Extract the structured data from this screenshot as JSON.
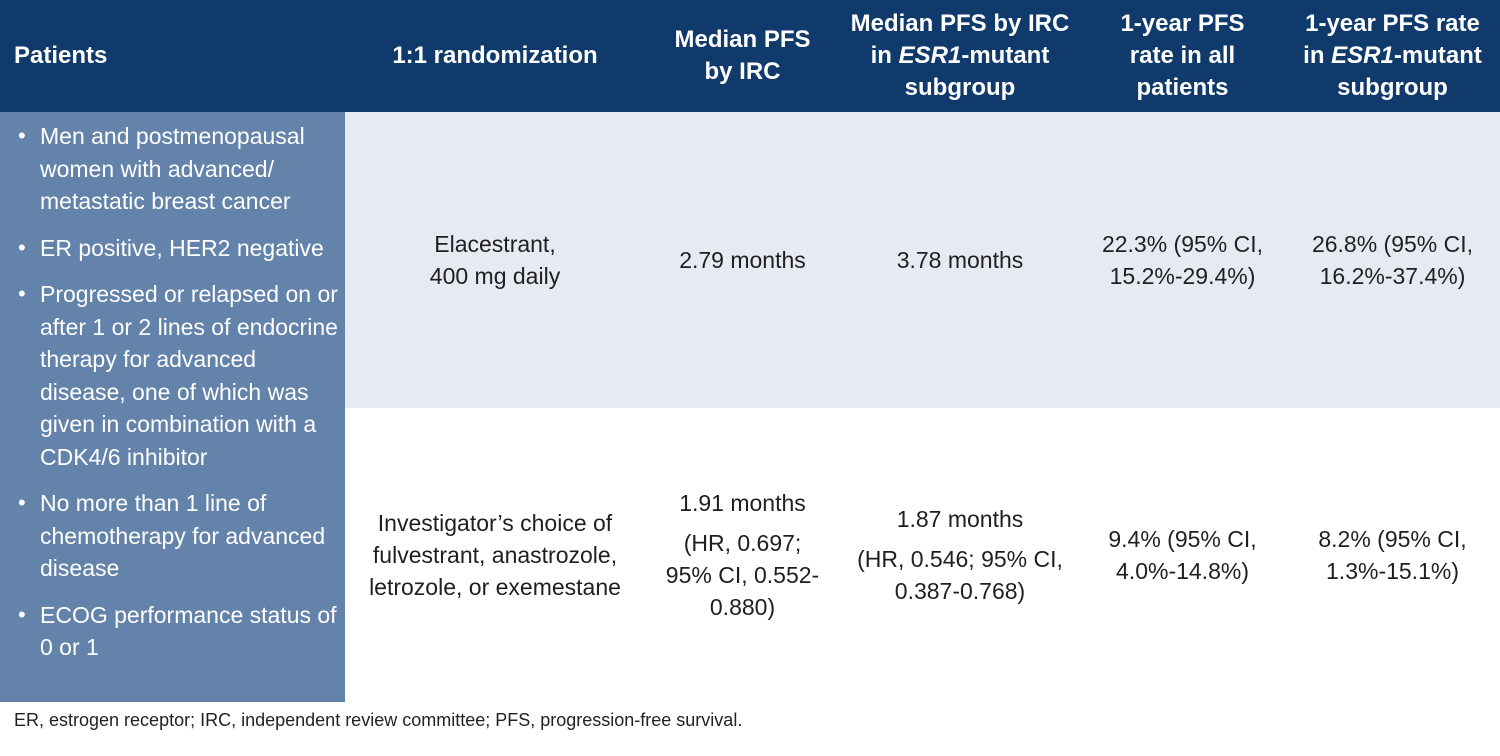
{
  "header": {
    "patients": "Patients",
    "randomization": "1:1 randomization",
    "median_pfs_l1": "Median PFS",
    "median_pfs_l2": "by IRC",
    "median_esr1_l1": "Median PFS by IRC",
    "median_esr1_l2_pre": "in ",
    "median_esr1_l2_ital": "ESR1",
    "median_esr1_l2_post": "-mutant",
    "median_esr1_l3": "subgroup",
    "rate_all_l1": "1-year PFS",
    "rate_all_l2": "rate in all",
    "rate_all_l3": "patients",
    "rate_esr1_l1": "1-year PFS rate",
    "rate_esr1_l2_pre": "in ",
    "rate_esr1_l2_ital": "ESR1",
    "rate_esr1_l2_post": "-mutant",
    "rate_esr1_l3": "subgroup"
  },
  "patients": {
    "bullets": [
      "Men and postmenopausal women with advanced/ metastatic breast cancer",
      "ER positive, HER2 negative",
      "Progressed or relapsed on or after 1 or 2 lines of endocrine therapy for advanced disease, one of which was given in combination with a CDK4/6 inhibitor",
      "No more than 1 line of chemotherapy for advanced disease",
      "ECOG performance status of 0 or 1"
    ]
  },
  "rows": {
    "elacestrant": {
      "arm_l1": "Elacestrant,",
      "arm_l2": "400 mg daily",
      "median_pfs": "2.79 months",
      "median_esr1": "3.78 months",
      "rate_all_l1": "22.3% (95% CI,",
      "rate_all_l2": "15.2%-29.4%)",
      "rate_esr1_l1": "26.8% (95% CI,",
      "rate_esr1_l2": "16.2%-37.4%)"
    },
    "investigator": {
      "arm_l1": "Investigator’s choice of",
      "arm_l2": "fulvestrant, anastrozole,",
      "arm_l3": "letrozole, or exemestane",
      "median_pfs": "1.91 months",
      "median_pfs_hr_l1": "(HR, 0.697;",
      "median_pfs_hr_l2": "95% CI, 0.552-",
      "median_pfs_hr_l3": "0.880)",
      "median_esr1": "1.87 months",
      "median_esr1_hr_l1": "(HR, 0.546; 95% CI,",
      "median_esr1_hr_l2": "0.387-0.768)",
      "rate_all_l1": "9.4% (95% CI,",
      "rate_all_l2": "4.0%-14.8%)",
      "rate_esr1_l1": "8.2% (95% CI,",
      "rate_esr1_l2": "1.3%-15.1%)"
    }
  },
  "footnote": "ER, estrogen receptor; IRC, independent review committee; PFS, progression-free survival.",
  "colors": {
    "header_bg": "#0f3a6b",
    "patients_bg": "#6483ab",
    "row1_bg": "#e6ebf3"
  }
}
